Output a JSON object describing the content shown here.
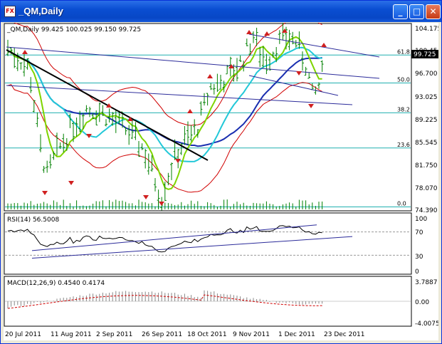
{
  "window": {
    "title": "_QM,Daily",
    "minimize_symbol": "_",
    "maximize_symbol": "□",
    "close_symbol": "✕",
    "icon": "chart-app-icon",
    "icon_text": "FX"
  },
  "main_chart": {
    "header": "_QM,Daily  99.425 100.025 99.150 99.725",
    "price_labels": [
      "104.175",
      "100.45",
      "96.700",
      "93.025",
      "89.225",
      "85.545",
      "81.750",
      "78.070",
      "74.390"
    ],
    "current_price": "99.725",
    "fib_levels": [
      {
        "label": "61.8",
        "value": 99.8
      },
      {
        "label": "50.0",
        "value": 95.2
      },
      {
        "label": "38.2",
        "value": 90.3
      },
      {
        "label": "23.6",
        "value": 84.5
      },
      {
        "label": "0.0",
        "value": 74.8
      }
    ]
  },
  "rsi_panel": {
    "header": "RSI(14) 56.5008",
    "scale_labels": [
      "100",
      "70",
      "30",
      "0"
    ]
  },
  "macd_panel": {
    "header": "MACD(12,26,9) 0.4540 0.4174",
    "scale_labels": [
      "3.7887",
      "0.00",
      "-4.0075"
    ]
  },
  "date_labels": [
    "20 Jul 2011",
    "11 Aug 2011",
    "2 Sep 2011",
    "26 Sep 2011",
    "18 Oct 2011",
    "9 Nov 2011",
    "1 Dec 2011",
    "23 Dec 2011"
  ],
  "colors": {
    "bars": "#008000",
    "bollinger": "#d00000",
    "ma_fast": "#7fd400",
    "ma_mid": "#22c8d8",
    "ma_slow": "#1a2fb0",
    "trendline": "#2b2b9a",
    "fractal": "#d02020",
    "fib": "#20b0b0"
  }
}
